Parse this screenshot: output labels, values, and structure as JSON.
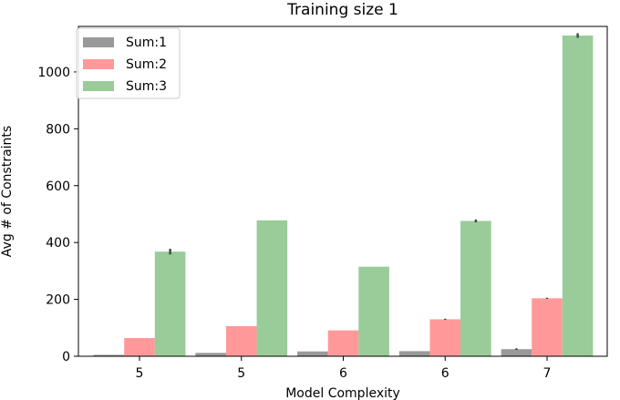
{
  "chart_data": {
    "type": "bar",
    "title": "Training size 1",
    "xlabel": "Model Complexity",
    "ylabel": "Avg # of Constraints",
    "categories": [
      "5",
      "5",
      "6",
      "6",
      "7"
    ],
    "ylim": [
      0,
      1160
    ],
    "yticks": [
      0,
      200,
      400,
      600,
      800,
      1000
    ],
    "grid": false,
    "legend_position": "top-left",
    "series": [
      {
        "name": "Sum:1",
        "color": "#999999",
        "values": [
          5,
          12,
          17,
          18,
          25
        ],
        "errors": [
          0,
          0,
          0,
          0,
          3
        ]
      },
      {
        "name": "Sum:2",
        "color": "#ff9999",
        "values": [
          64,
          106,
          91,
          130,
          204
        ],
        "errors": [
          0,
          0,
          0,
          2,
          2
        ]
      },
      {
        "name": "Sum:3",
        "color": "#99cc99",
        "values": [
          368,
          478,
          315,
          476,
          1128
        ],
        "errors": [
          10,
          0,
          0,
          5,
          8
        ]
      }
    ]
  }
}
